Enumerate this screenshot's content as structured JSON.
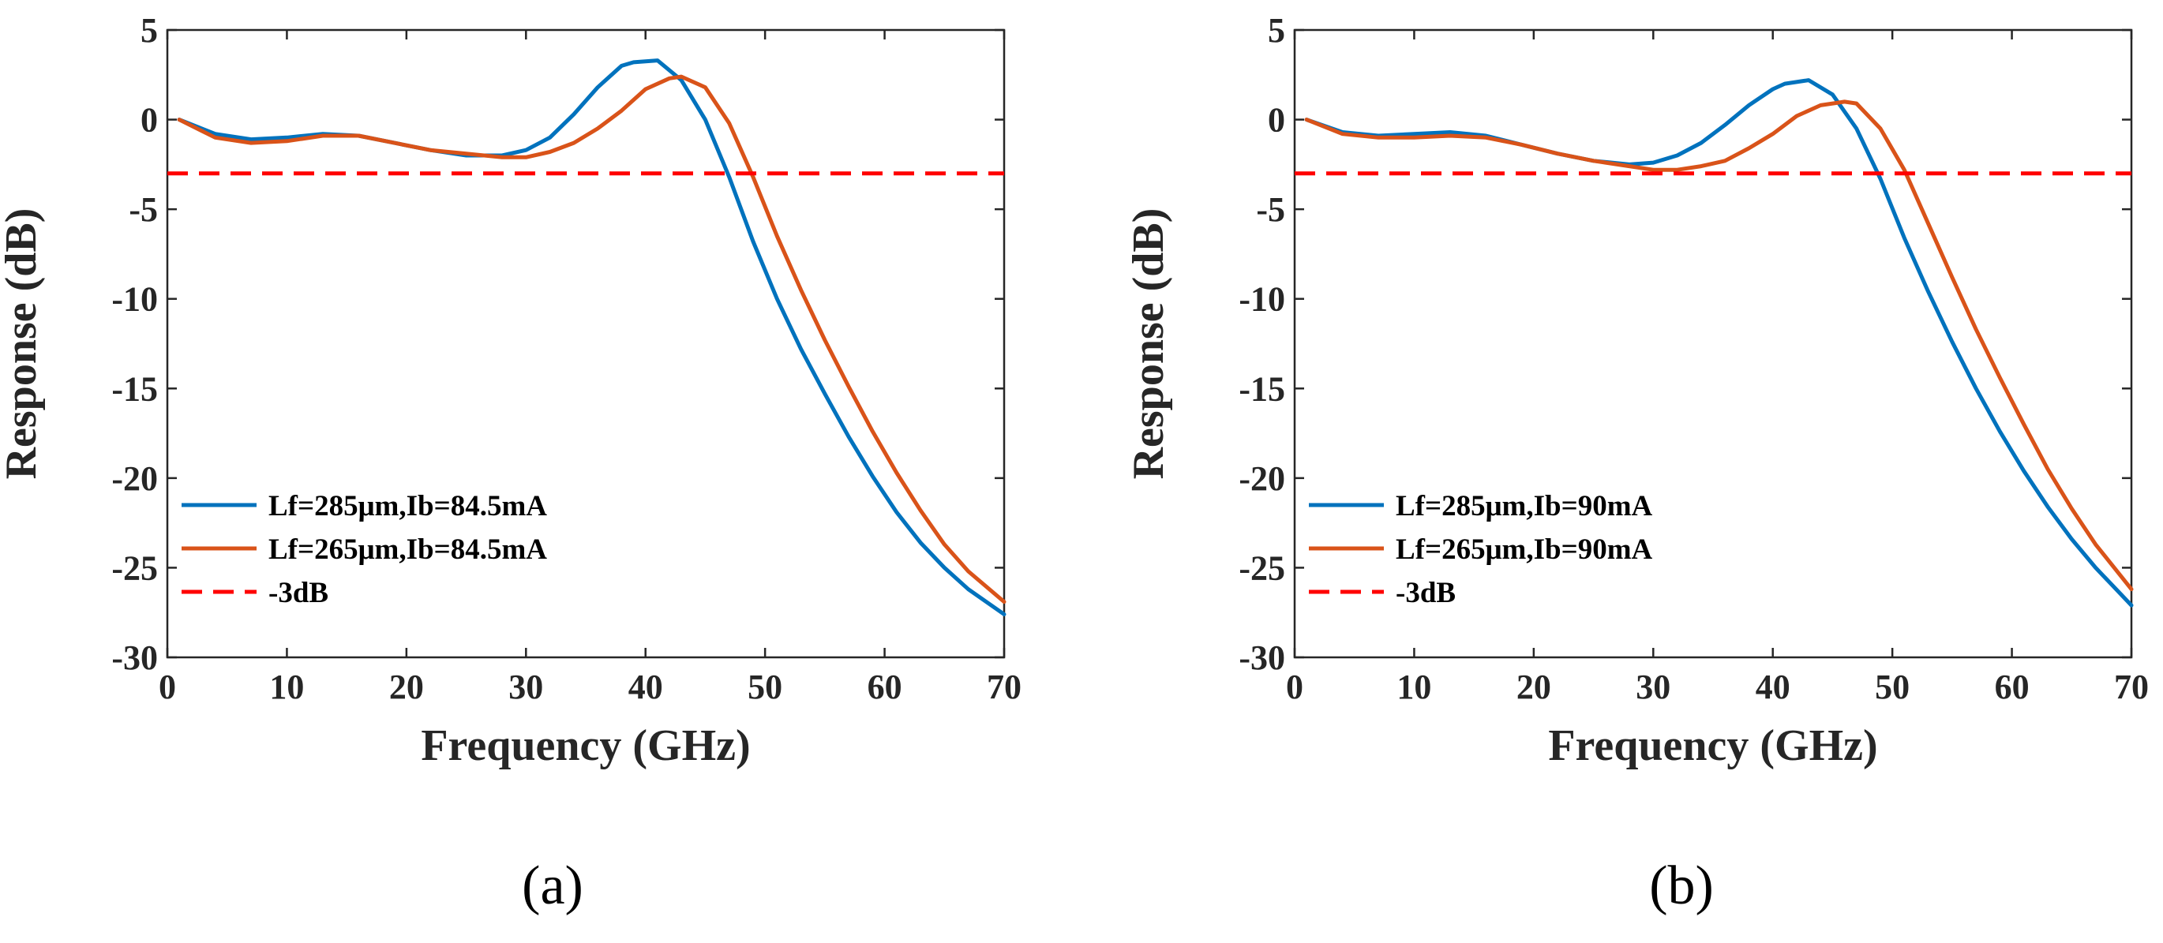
{
  "chart_data": [
    {
      "type": "line",
      "panel_label": "(a)",
      "title": "",
      "xlabel": "Frequency (GHz)",
      "ylabel": "Response (dB)",
      "xlim": [
        0,
        70
      ],
      "ylim": [
        -30,
        5
      ],
      "xticks": [
        0,
        10,
        20,
        30,
        40,
        50,
        60,
        70
      ],
      "yticks": [
        5,
        0,
        -5,
        -10,
        -15,
        -20,
        -25,
        -30
      ],
      "grid": false,
      "legend_position": "bottom-left",
      "series": [
        {
          "name": "Lf=285μm,Ib=84.5mA",
          "color": "#0072BD",
          "dashed": false,
          "x": [
            1,
            4,
            7,
            10,
            13,
            16,
            19,
            22,
            25,
            28,
            30,
            32,
            34,
            36,
            38,
            39,
            41,
            43,
            45,
            47,
            49,
            51,
            53,
            55,
            57,
            59,
            61,
            63,
            65,
            67,
            70
          ],
          "y": [
            0,
            -0.8,
            -1.1,
            -1.0,
            -0.8,
            -0.9,
            -1.3,
            -1.7,
            -2.0,
            -2.0,
            -1.7,
            -1.0,
            0.3,
            1.8,
            3.0,
            3.2,
            3.3,
            2.2,
            0.0,
            -3.2,
            -6.8,
            -10.0,
            -12.8,
            -15.3,
            -17.7,
            -19.9,
            -21.9,
            -23.6,
            -25.0,
            -26.2,
            -27.6
          ]
        },
        {
          "name": "Lf=265μm,Ib=84.5mA",
          "color": "#D95319",
          "dashed": false,
          "x": [
            1,
            4,
            7,
            10,
            13,
            16,
            19,
            22,
            25,
            28,
            30,
            32,
            34,
            36,
            38,
            40,
            42,
            43,
            45,
            47,
            49,
            51,
            53,
            55,
            57,
            59,
            61,
            63,
            65,
            67,
            70
          ],
          "y": [
            0,
            -1.0,
            -1.3,
            -1.2,
            -0.9,
            -0.9,
            -1.3,
            -1.7,
            -1.9,
            -2.1,
            -2.1,
            -1.8,
            -1.3,
            -0.5,
            0.5,
            1.7,
            2.3,
            2.4,
            1.8,
            -0.2,
            -3.2,
            -6.5,
            -9.5,
            -12.3,
            -14.9,
            -17.4,
            -19.7,
            -21.8,
            -23.7,
            -25.2,
            -26.9
          ]
        },
        {
          "name": "-3dB",
          "color": "#FF0000",
          "dashed": true,
          "x": [
            0,
            70
          ],
          "y": [
            -3,
            -3
          ]
        }
      ]
    },
    {
      "type": "line",
      "panel_label": "(b)",
      "title": "",
      "xlabel": "Frequency (GHz)",
      "ylabel": "Response (dB)",
      "xlim": [
        0,
        70
      ],
      "ylim": [
        -30,
        5
      ],
      "xticks": [
        0,
        10,
        20,
        30,
        40,
        50,
        60,
        70
      ],
      "yticks": [
        5,
        0,
        -5,
        -10,
        -15,
        -20,
        -25,
        -30
      ],
      "grid": false,
      "legend_position": "bottom-left",
      "series": [
        {
          "name": "Lf=285μm,Ib=90mA",
          "color": "#0072BD",
          "dashed": false,
          "x": [
            1,
            4,
            7,
            10,
            13,
            16,
            19,
            22,
            25,
            28,
            30,
            32,
            34,
            36,
            38,
            40,
            41,
            43,
            45,
            47,
            49,
            51,
            53,
            55,
            57,
            59,
            61,
            63,
            65,
            67,
            70
          ],
          "y": [
            0,
            -0.7,
            -0.9,
            -0.8,
            -0.7,
            -0.9,
            -1.4,
            -1.9,
            -2.3,
            -2.5,
            -2.4,
            -2.0,
            -1.3,
            -0.3,
            0.8,
            1.7,
            2.0,
            2.2,
            1.4,
            -0.5,
            -3.3,
            -6.6,
            -9.6,
            -12.4,
            -15.0,
            -17.4,
            -19.6,
            -21.6,
            -23.4,
            -25.0,
            -27.1
          ]
        },
        {
          "name": "Lf=265μm,Ib=90mA",
          "color": "#D95319",
          "dashed": false,
          "x": [
            1,
            4,
            7,
            10,
            13,
            16,
            19,
            22,
            25,
            28,
            30,
            32,
            34,
            36,
            38,
            40,
            42,
            44,
            46,
            47,
            49,
            51,
            53,
            55,
            57,
            59,
            61,
            63,
            65,
            67,
            70
          ],
          "y": [
            0,
            -0.8,
            -1.0,
            -1.0,
            -0.9,
            -1.0,
            -1.4,
            -1.9,
            -2.3,
            -2.6,
            -2.8,
            -2.8,
            -2.6,
            -2.3,
            -1.6,
            -0.8,
            0.2,
            0.8,
            1.0,
            0.9,
            -0.5,
            -2.8,
            -5.8,
            -8.8,
            -11.7,
            -14.4,
            -17.0,
            -19.5,
            -21.7,
            -23.7,
            -26.2
          ]
        },
        {
          "name": "-3dB",
          "color": "#FF0000",
          "dashed": true,
          "x": [
            0,
            70
          ],
          "y": [
            -3,
            -3
          ]
        }
      ]
    }
  ]
}
